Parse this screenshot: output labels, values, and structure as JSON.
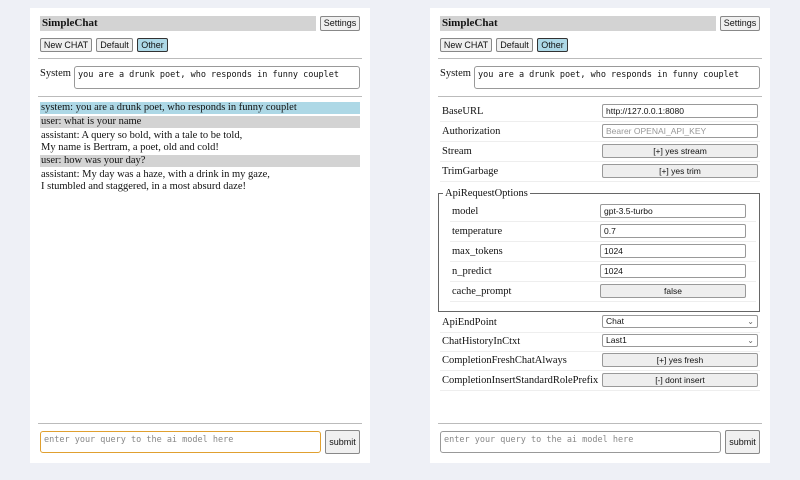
{
  "app_title": "SimpleChat",
  "settings_label": "Settings",
  "chat_buttons": [
    "New CHAT",
    "Default",
    "Other"
  ],
  "selected_chat": "Other",
  "system_label": "System",
  "system_prompt": "you are a drunk poet, who responds in funny couplet",
  "messages": [
    {
      "role": "system",
      "text": "system: you are a drunk poet, who responds in funny couplet"
    },
    {
      "role": "user",
      "text": "user: what is your name"
    },
    {
      "role": "assistant",
      "text": "assistant: A query so bold, with a tale to be told,\nMy name is Bertram, a poet, old and cold!"
    },
    {
      "role": "user",
      "text": "user: how was your day?"
    },
    {
      "role": "assistant",
      "text": "assistant: My day was a haze, with a drink in my gaze,\nI stumbled and staggered, in a most absurd daze!"
    }
  ],
  "query_placeholder": "enter your query to the ai model here",
  "submit_label": "submit",
  "settings": {
    "base_url": {
      "label": "BaseURL",
      "value": "http://127.0.0.1:8080"
    },
    "authorization": {
      "label": "Authorization",
      "placeholder": "Bearer OPENAI_API_KEY"
    },
    "stream": {
      "label": "Stream",
      "value": "[+] yes stream"
    },
    "trim_garbage": {
      "label": "TrimGarbage",
      "value": "[+] yes trim"
    },
    "api_request_options": {
      "legend": "ApiRequestOptions",
      "model": {
        "label": "model",
        "value": "gpt-3.5-turbo"
      },
      "temperature": {
        "label": "temperature",
        "value": "0.7"
      },
      "max_tokens": {
        "label": "max_tokens",
        "value": "1024"
      },
      "n_predict": {
        "label": "n_predict",
        "value": "1024"
      },
      "cache_prompt": {
        "label": "cache_prompt",
        "value": "false"
      }
    },
    "api_endpoint": {
      "label": "ApiEndPoint",
      "value": "Chat"
    },
    "chat_history": {
      "label": "ChatHistoryInCtxt",
      "value": "Last1"
    },
    "completion_fresh": {
      "label": "CompletionFreshChatAlways",
      "value": "[+] yes fresh"
    },
    "completion_prefix": {
      "label": "CompletionInsertStandardRolePrefix",
      "value": "[-] dont insert"
    }
  },
  "colors": {
    "system_msg_bg": "#add8e6",
    "user_msg_bg": "#d3d3d3",
    "selected_button_bg": "#add8e6",
    "focus_border": "#e0a030"
  }
}
